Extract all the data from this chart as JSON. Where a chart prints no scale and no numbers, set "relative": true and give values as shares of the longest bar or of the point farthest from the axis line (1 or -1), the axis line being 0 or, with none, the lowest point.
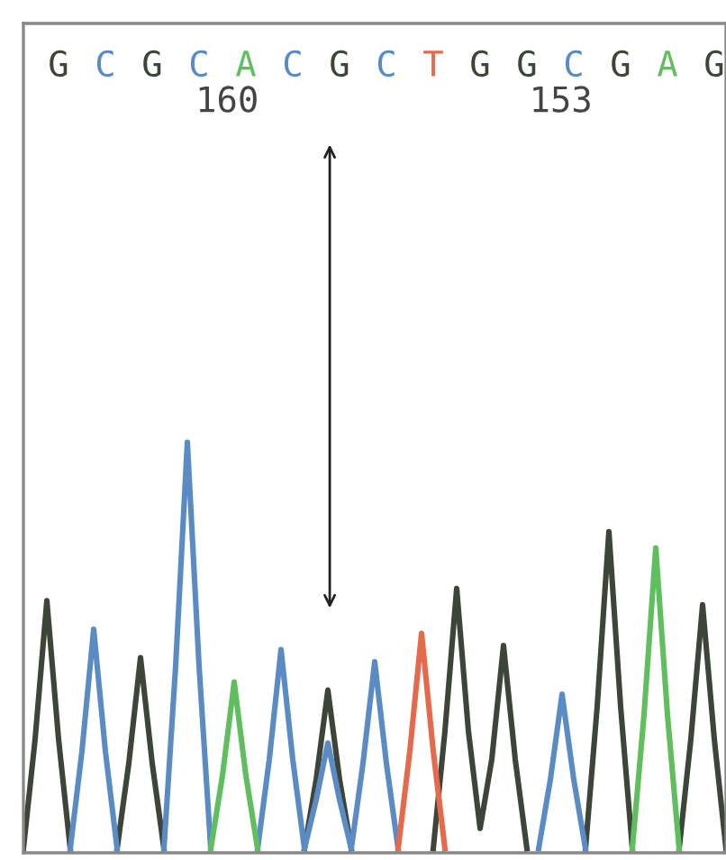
{
  "chart_data": {
    "type": "line",
    "relative": true,
    "categories": [
      null,
      null,
      null,
      "G",
      null,
      null,
      null,
      "C",
      null,
      null,
      null,
      "G",
      null,
      null,
      null,
      "C",
      null,
      null,
      null,
      "A",
      null,
      null,
      null,
      "C",
      null,
      null,
      null,
      "G",
      null,
      null,
      null,
      "C",
      null,
      null,
      null,
      "T",
      null,
      null,
      null,
      "G",
      null,
      null,
      null,
      "G",
      null,
      null,
      null,
      "C",
      null,
      null,
      null,
      "G",
      null,
      null,
      null,
      "A",
      null,
      null,
      null,
      "G",
      null
    ],
    "colors": [
      null,
      null,
      null,
      "#3d4438",
      null,
      null,
      null,
      "#5b8bc4",
      null,
      null,
      null,
      "#3d4438",
      null,
      null,
      null,
      "#5b8bc4",
      null,
      null,
      null,
      "#5fbf5f",
      null,
      null,
      null,
      "#5b8bc4",
      null,
      null,
      null,
      "#3d4438",
      null,
      null,
      null,
      "#5b8bc4",
      null,
      null,
      null,
      "#e5694a",
      null,
      null,
      null,
      "#3d4438",
      null,
      null,
      null,
      "#3d4438",
      null,
      null,
      null,
      "#5b8bc4",
      null,
      null,
      null,
      "#3d4438",
      null,
      null,
      null,
      "#5fbf5f",
      null,
      null,
      null,
      "#3d4438",
      null
    ],
    "annotations": [
      "160",
      "153"
    ],
    "tick_labels": "x",
    "grid": false,
    "legend": false,
    "line_style": "solid",
    "series": [
      {
        "color": "#3d4438",
        "values": [
          0,
          0.27,
          0.61,
          0.27,
          0,
          null,
          null,
          null,
          0,
          0.21,
          0.47,
          0.21,
          0,
          null,
          null,
          null,
          null,
          null,
          null,
          null,
          null,
          null,
          null,
          null,
          0,
          0.17,
          0.39,
          0.17,
          0,
          null,
          null,
          null,
          null,
          null,
          null,
          0,
          0.29,
          0.64,
          0.29,
          0.05,
          0.22,
          0.5,
          0.22,
          0,
          null,
          null,
          null,
          null,
          0,
          0.35,
          0.78,
          0.35,
          0,
          null,
          null,
          null,
          0,
          0.27,
          0.6,
          0.27,
          0
        ]
      },
      {
        "color": "#5b8bc4",
        "values": [
          null,
          null,
          null,
          null,
          0,
          0.24,
          0.54,
          0.24,
          0,
          null,
          null,
          null,
          0,
          0.45,
          1.0,
          0.45,
          0,
          null,
          null,
          null,
          0,
          0.22,
          0.49,
          0.22,
          0,
          0.12,
          0.26,
          0.12,
          0,
          0.21,
          0.46,
          0.21,
          0,
          null,
          null,
          null,
          null,
          null,
          null,
          null,
          null,
          null,
          null,
          null,
          0,
          0.17,
          0.38,
          0.17,
          0,
          null,
          null,
          null,
          null,
          null,
          null,
          null,
          null,
          null,
          null,
          null,
          null
        ]
      },
      {
        "color": "#5fbf5f",
        "values": [
          null,
          null,
          null,
          null,
          null,
          null,
          null,
          null,
          null,
          null,
          null,
          null,
          null,
          null,
          null,
          null,
          0,
          0.18,
          0.41,
          0.18,
          0,
          null,
          null,
          null,
          null,
          null,
          null,
          null,
          null,
          null,
          null,
          null,
          null,
          null,
          null,
          null,
          null,
          null,
          null,
          null,
          null,
          null,
          null,
          null,
          null,
          null,
          null,
          null,
          null,
          null,
          null,
          null,
          0,
          0.33,
          0.74,
          0.33,
          0,
          null,
          null,
          null,
          null
        ]
      },
      {
        "color": "#e5694a",
        "values": [
          null,
          null,
          null,
          null,
          null,
          null,
          null,
          null,
          null,
          null,
          null,
          null,
          null,
          null,
          null,
          null,
          null,
          null,
          null,
          null,
          null,
          null,
          null,
          null,
          null,
          null,
          null,
          null,
          null,
          null,
          null,
          null,
          0,
          0.24,
          0.53,
          0.24,
          0,
          null,
          null,
          null,
          null,
          null,
          null,
          null,
          null,
          null,
          null,
          null,
          null,
          null,
          null,
          null,
          null,
          null,
          null,
          null,
          null,
          null,
          null,
          null,
          null
        ]
      }
    ]
  }
}
